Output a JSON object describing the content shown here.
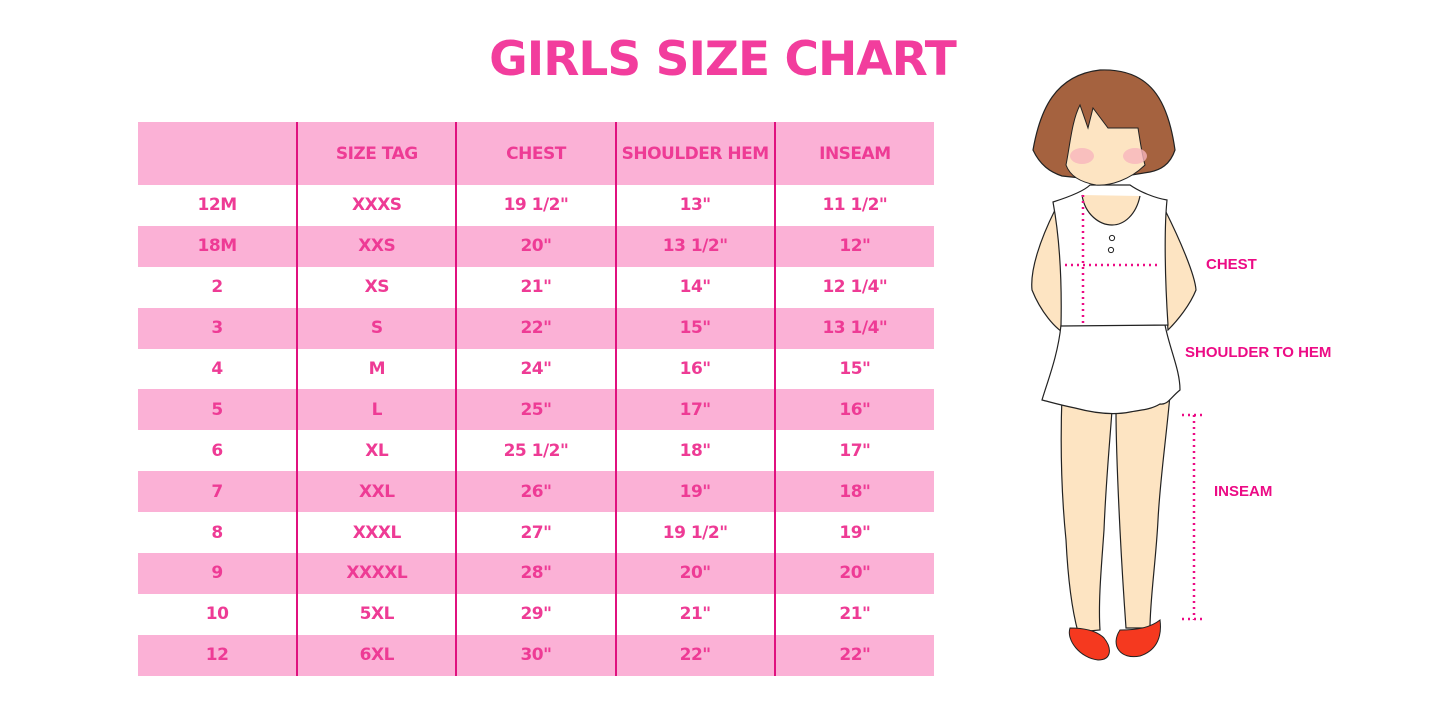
{
  "title": "GIRLS SIZE CHART",
  "table": {
    "headers": [
      "",
      "SIZE TAG",
      "CHEST",
      "SHOULDER HEM",
      "INSEAM"
    ],
    "rows": [
      [
        "12M",
        "XXXS",
        "19 1/2\"",
        "13\"",
        "11 1/2\""
      ],
      [
        "18M",
        "XXS",
        "20\"",
        "13 1/2\"",
        "12\""
      ],
      [
        "2",
        "XS",
        "21\"",
        "14\"",
        "12 1/4\""
      ],
      [
        "3",
        "S",
        "22\"",
        "15\"",
        "13 1/4\""
      ],
      [
        "4",
        "M",
        "24\"",
        "16\"",
        "15\""
      ],
      [
        "5",
        "L",
        "25\"",
        "17\"",
        "16\""
      ],
      [
        "6",
        "XL",
        "25 1/2\"",
        "18\"",
        "17\""
      ],
      [
        "7",
        "XXL",
        "26\"",
        "19\"",
        "18\""
      ],
      [
        "8",
        "XXXL",
        "27\"",
        "19 1/2\"",
        "19\""
      ],
      [
        "9",
        "XXXXL",
        "28\"",
        "20\"",
        "20\""
      ],
      [
        "10",
        "5XL",
        "29\"",
        "21\"",
        "21\""
      ],
      [
        "12",
        "6XL",
        "30\"",
        "22\"",
        "22\""
      ]
    ]
  },
  "illustration": {
    "labels": {
      "chest": "CHEST",
      "shoulder_to_hem": "SHOULDER TO HEM",
      "inseam": "INSEAM"
    }
  },
  "colors": {
    "text": "#ee3b95",
    "row_fill": "#fbb1d6",
    "divider": "#e0117f",
    "measure": "#ec0b85"
  }
}
